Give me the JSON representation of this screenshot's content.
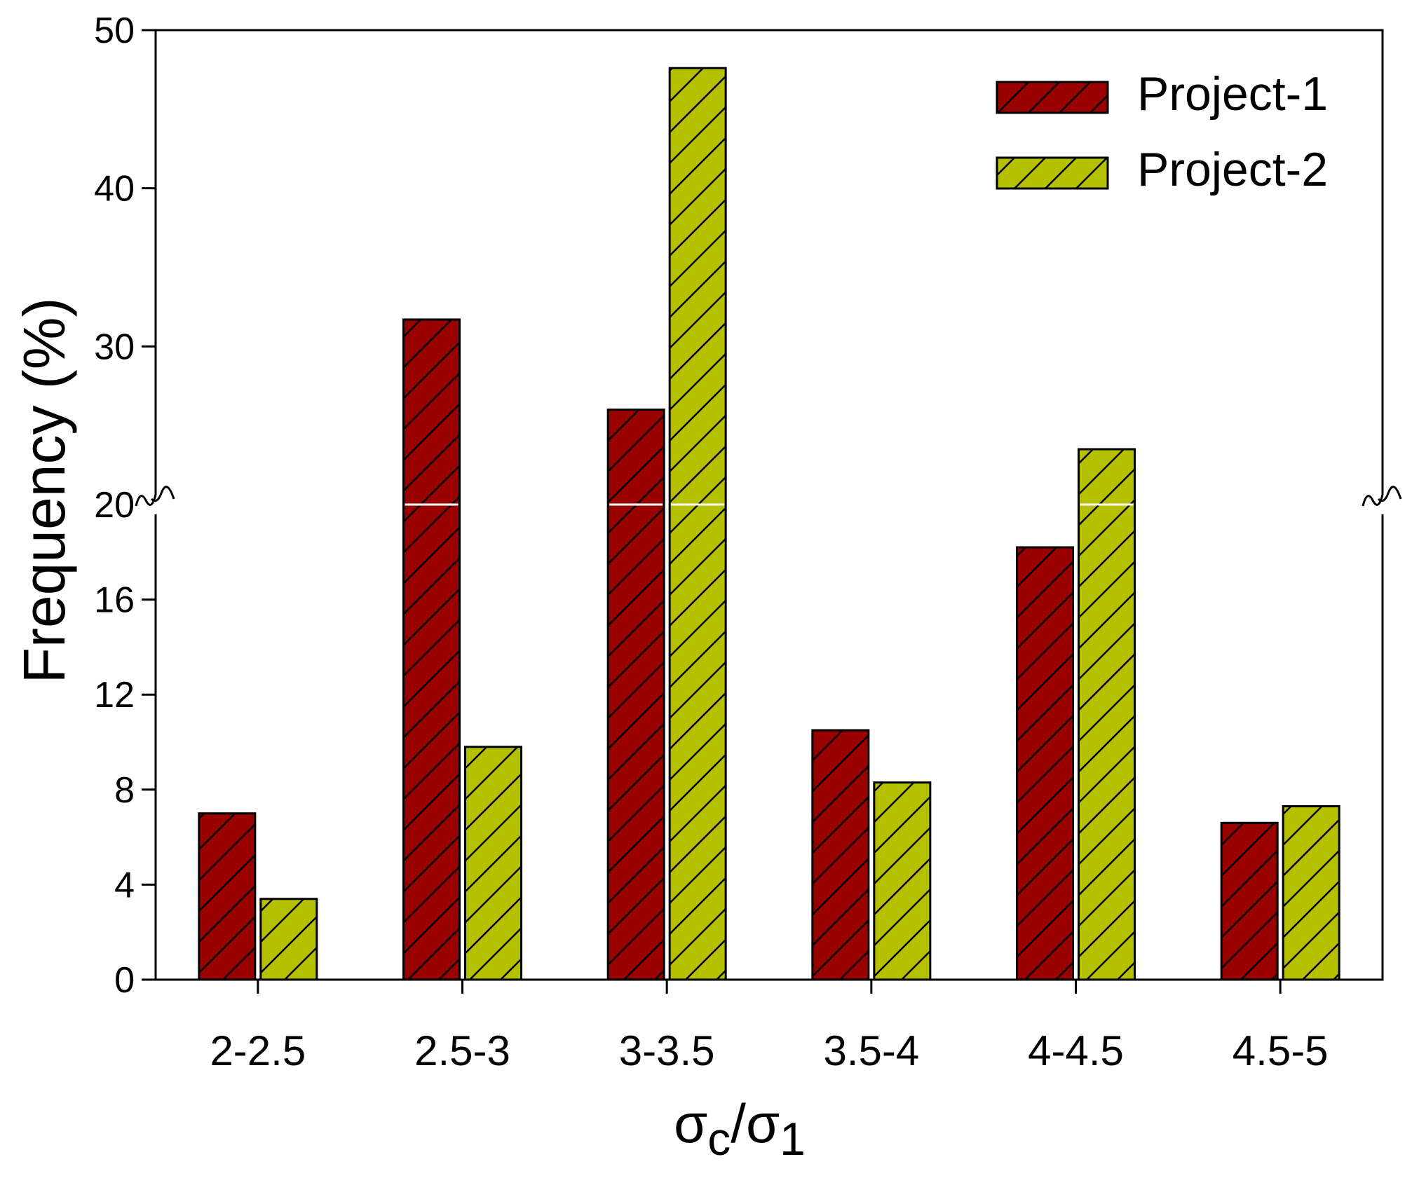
{
  "chart_data": {
    "type": "bar",
    "title": "",
    "xlabel": {
      "main": "σ",
      "sub1": "c",
      "slash": "/σ",
      "sub2": "1"
    },
    "ylabel": "Frequency (%)",
    "categories": [
      "2-2.5",
      "2.5-3",
      "3-3.5",
      "3.5-4",
      "4-4.5",
      "4.5-5"
    ],
    "series": [
      {
        "name": "Project-1",
        "color": "#990000",
        "values": [
          7.0,
          31.7,
          26.0,
          10.5,
          18.2,
          6.6
        ]
      },
      {
        "name": "Project-2",
        "color": "#B5C000",
        "values": [
          3.4,
          9.8,
          47.6,
          8.3,
          23.5,
          7.3
        ]
      }
    ],
    "axis_break": 20,
    "ylim": [
      0,
      50
    ],
    "yticks_lower": [
      0,
      4,
      8,
      12,
      16,
      20
    ],
    "yticks_upper": [
      30,
      40,
      50
    ],
    "legend": "top-right",
    "hatch": "diagonal"
  }
}
